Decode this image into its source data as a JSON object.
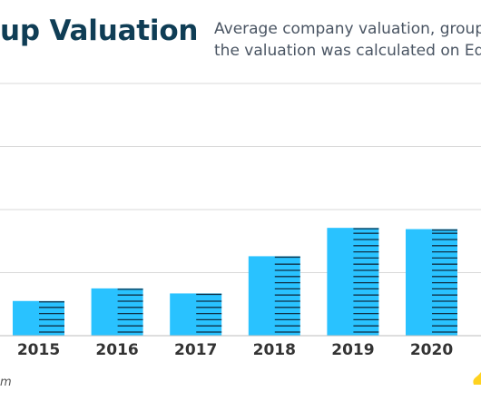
{
  "header": {
    "title": "up Valuation",
    "subtitle_lines": [
      "Average company valuation, group",
      "the valuation was calculated on Eq"
    ]
  },
  "footer": {
    "source": "m"
  },
  "colors": {
    "bar": "#29c2ff",
    "bar_stripe": "#0f3046",
    "grid": "#d9d9d9",
    "axis": "#bdbdbd",
    "title": "#0f3d55",
    "logo": "#ffd21f"
  },
  "chart_data": {
    "type": "bar",
    "title": "up Valuation",
    "subtitle": "Average company valuation, group the valuation was calculated on Eq",
    "categories": [
      "2015",
      "2016",
      "2017",
      "2018",
      "2019",
      "2020"
    ],
    "values": [
      0.55,
      0.75,
      0.67,
      1.26,
      1.71,
      1.69
    ],
    "ylim": [
      0,
      4
    ],
    "grid": true,
    "xlabel": "",
    "ylabel": ""
  }
}
